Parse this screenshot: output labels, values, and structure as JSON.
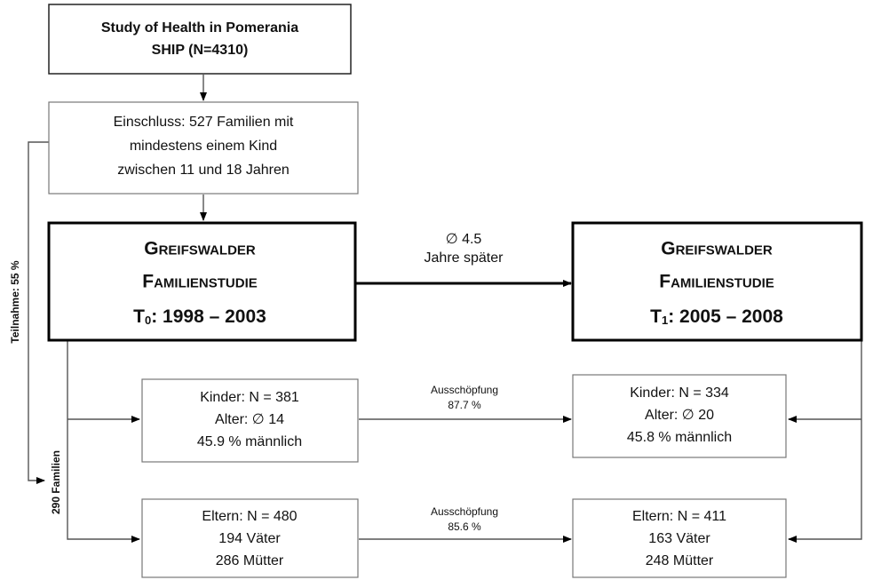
{
  "source": {
    "lines": [
      "Study of Health in Pomerania",
      "SHIP (N=4310)"
    ]
  },
  "inclusion": {
    "lines": [
      "Einschluss: 527 Familien mit",
      "mindestens einem Kind",
      "zwischen 11 und 18 Jahren"
    ]
  },
  "participation_label": "Teilnahme: 55 %",
  "families_label": "290 Familien",
  "t0": {
    "lines": [
      "Greifswalder",
      "Familienstudie"
    ],
    "symbol": "T",
    "subscript": "0",
    "period": ": 1998 – 2003"
  },
  "t1": {
    "lines": [
      "Greifswalder",
      "Familienstudie"
    ],
    "symbol": "T",
    "subscript": "1",
    "period": ": 2005 – 2008"
  },
  "interval": {
    "lines": [
      "∅ 4.5",
      "Jahre später"
    ]
  },
  "children_t0": {
    "lines": [
      "Kinder: N = 381",
      "Alter: ∅ 14",
      "45.9 % männlich"
    ]
  },
  "children_t1": {
    "lines": [
      "Kinder: N = 334",
      "Alter: ∅ 20",
      "45.8 % männlich"
    ]
  },
  "children_retention": {
    "lines": [
      "Ausschöpfung",
      "87.7 %"
    ]
  },
  "parents_t0": {
    "lines": [
      "Eltern: N = 480",
      "194 Väter",
      "286 Mütter"
    ]
  },
  "parents_t1": {
    "lines": [
      "Eltern: N = 411",
      "163 Väter",
      "248 Mütter"
    ]
  },
  "parents_retention": {
    "lines": [
      "Ausschöpfung",
      "85.6 %"
    ]
  }
}
